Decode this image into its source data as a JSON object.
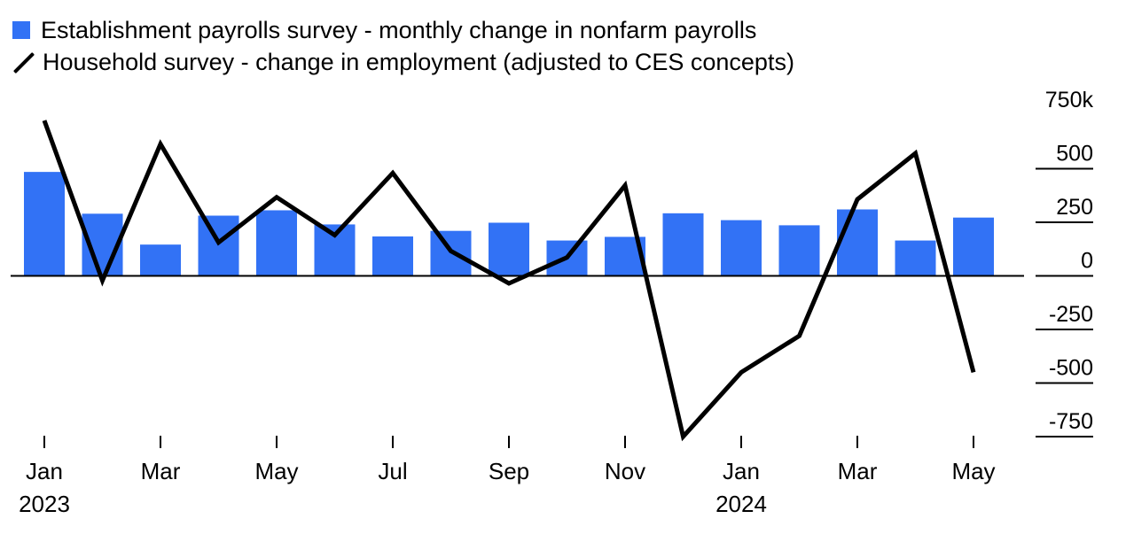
{
  "legend": {
    "bar_label": "Establishment payrolls survey - monthly change in nonfarm payrolls",
    "line_label": "Household survey - change in employment (adjusted to CES concepts)"
  },
  "colors": {
    "bar": "#3272f5",
    "line": "#000000",
    "axis": "#000000"
  },
  "chart_data": {
    "type": "bar+line",
    "title": "",
    "xlabel": "",
    "ylabel": "",
    "ylim": [
      -750,
      750
    ],
    "y_ticks": [
      750,
      500,
      250,
      0,
      -250,
      -500,
      -750
    ],
    "y_tick_labels": [
      "750k",
      "500",
      "250",
      "0",
      "-250",
      "-500",
      "-750"
    ],
    "categories": [
      "Jan 2023",
      "Feb 2023",
      "Mar 2023",
      "Apr 2023",
      "May 2023",
      "Jun 2023",
      "Jul 2023",
      "Aug 2023",
      "Sep 2023",
      "Oct 2023",
      "Nov 2023",
      "Dec 2023",
      "Jan 2024",
      "Feb 2024",
      "Mar 2024",
      "Apr 2024",
      "May 2024"
    ],
    "x_tick_labels": [
      {
        "index": 0,
        "label": "Jan",
        "sublabel": "2023"
      },
      {
        "index": 2,
        "label": "Mar",
        "sublabel": ""
      },
      {
        "index": 4,
        "label": "May",
        "sublabel": ""
      },
      {
        "index": 6,
        "label": "Jul",
        "sublabel": ""
      },
      {
        "index": 8,
        "label": "Sep",
        "sublabel": ""
      },
      {
        "index": 10,
        "label": "Nov",
        "sublabel": ""
      },
      {
        "index": 12,
        "label": "Jan",
        "sublabel": "2024"
      },
      {
        "index": 14,
        "label": "Mar",
        "sublabel": ""
      },
      {
        "index": 16,
        "label": "May",
        "sublabel": ""
      }
    ],
    "series": [
      {
        "name": "Establishment payrolls survey - monthly change in nonfarm payrolls",
        "type": "bar",
        "values": [
          485,
          290,
          146,
          281,
          306,
          240,
          184,
          210,
          248,
          165,
          182,
          292,
          260,
          236,
          310,
          165,
          272
        ]
      },
      {
        "name": "Household survey - change in employment (adjusted to CES concepts)",
        "type": "line",
        "values": [
          725,
          -22,
          615,
          156,
          367,
          190,
          480,
          116,
          -35,
          86,
          422,
          -750,
          -450,
          -280,
          357,
          572,
          -450
        ]
      }
    ],
    "grid": false,
    "legend_position": "top-left"
  }
}
